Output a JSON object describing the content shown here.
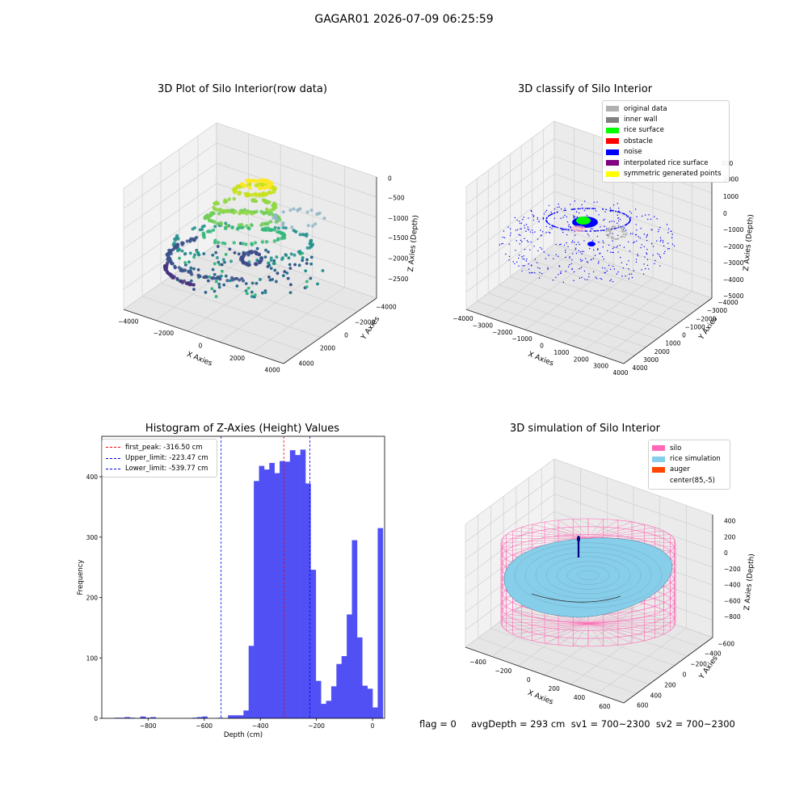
{
  "suptitle": "GAGAR01 2026-07-09 06:25:59",
  "footer": "flag = 0     avgDepth = 293 cm  sv1 = 700~2300  sv2 = 700~2300",
  "plot1": {
    "title": "3D Plot of Silo Interior(row data)",
    "xlabel": "X Axies",
    "ylabel": "Y Axies",
    "zlabel": "Z Axies (Depth)",
    "xticks": [
      "−4000",
      "−2000",
      "0",
      "2000",
      "4000"
    ],
    "yticks": [
      "−4000",
      "−2000",
      "0",
      "2000",
      "4000"
    ],
    "zticks": [
      "0",
      "−500",
      "−1000",
      "−1500",
      "−2000",
      "−2500"
    ]
  },
  "plot2": {
    "title": "3D classify of Silo Interior",
    "xlabel": "X Axies",
    "ylabel": "Y Axies",
    "zlabel": "Z Axies (Depth)",
    "xticks": [
      "−4000",
      "−3000",
      "−2000",
      "−1000",
      "0",
      "1000",
      "2000",
      "3000",
      "4000"
    ],
    "yticks": [
      "−4000",
      "−3000",
      "−2000",
      "−1000",
      "0",
      "1000",
      "2000",
      "3000",
      "4000"
    ],
    "zticks": [
      "2000",
      "1000",
      "0",
      "−1000",
      "−2000",
      "−3000",
      "−4000",
      "−5000"
    ],
    "zticks_partial": "000",
    "legend": [
      {
        "label": "original data",
        "color": "#b0b0b0"
      },
      {
        "label": "inner wall",
        "color": "#808080"
      },
      {
        "label": "rice surface",
        "color": "#00ff00"
      },
      {
        "label": "obstacle",
        "color": "#ff0000"
      },
      {
        "label": "noise",
        "color": "#0000ff"
      },
      {
        "label": "interpolated rice surface",
        "color": "#800080"
      },
      {
        "label": "symmetric generated points",
        "color": "#ffff00"
      }
    ]
  },
  "plot4": {
    "title": "3D simulation of Silo Interior",
    "xlabel": "X Axies",
    "ylabel": "Y Axies",
    "zlabel": "Z Axies (Depth)",
    "xticks": [
      "−400",
      "−200",
      "0",
      "200",
      "400",
      "600"
    ],
    "yticks": [
      "−600",
      "−400",
      "−200",
      "0",
      "200",
      "400",
      "600"
    ],
    "zticks": [
      "400",
      "200",
      "0",
      "−200",
      "−400",
      "−600",
      "−800"
    ],
    "legend": [
      {
        "label": "silo",
        "color": "#ff69b4"
      },
      {
        "label": "rice simulation",
        "color": "#87ceeb"
      },
      {
        "label": "auger",
        "color": "#ff4500"
      },
      {
        "label": "center(85,-5)",
        "color": "#ffffff"
      }
    ],
    "colors": {
      "silo": "#ff69b4",
      "rice": "#87ceeb",
      "auger": "#000080"
    }
  },
  "chart_data": [
    {
      "type": "histogram",
      "title": "Histogram of Z-Axies (Height) Values",
      "xlabel": "Depth (cm)",
      "ylabel": "Frequency",
      "xlim": [
        -965,
        43
      ],
      "ylim": [
        0,
        467
      ],
      "xticks": [
        -800,
        -600,
        -400,
        -200,
        0
      ],
      "xtick_labels": [
        "−800",
        "−600",
        "−400",
        "−200",
        "0"
      ],
      "yticks": [
        0,
        100,
        200,
        300,
        400
      ],
      "bar_color": "#5050f5",
      "bin_start": -920,
      "bin_width": 18.4,
      "counts": [
        1,
        1,
        2,
        1,
        0,
        3,
        1,
        2,
        0,
        0,
        0,
        0,
        0,
        0,
        0,
        1,
        2,
        3,
        0,
        0,
        1,
        0,
        5,
        5,
        5,
        13,
        120,
        393,
        418,
        412,
        423,
        406,
        426,
        425,
        444,
        436,
        445,
        389,
        246,
        62,
        24,
        29,
        53,
        90,
        103,
        172,
        295,
        134,
        54,
        49,
        18,
        315
      ],
      "lines": [
        {
          "label": "first_peak: -316.50 cm",
          "x": -316.5,
          "color": "#ff0000"
        },
        {
          "label": "Upper_limit: -223.47 cm",
          "x": -223.47,
          "color": "#0000ff"
        },
        {
          "label": "Lower_limit: -539.77 cm",
          "x": -539.77,
          "color": "#0000ff"
        }
      ]
    }
  ]
}
